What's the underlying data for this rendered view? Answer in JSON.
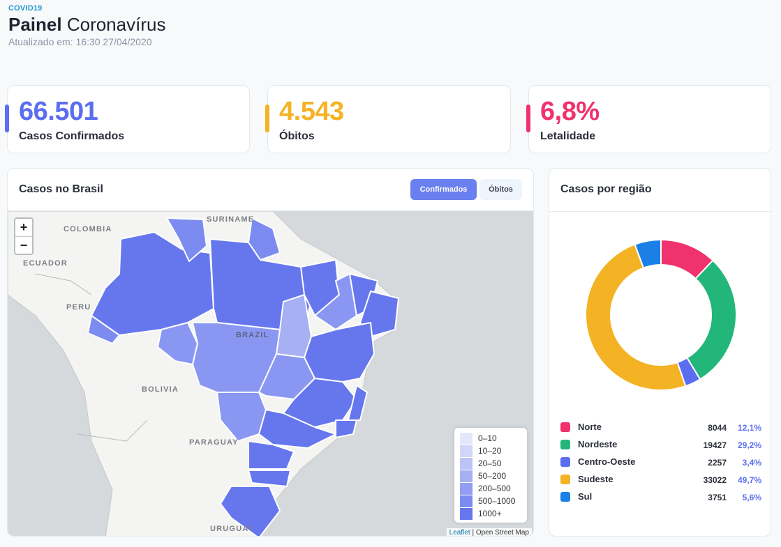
{
  "header": {
    "tag": "COVID19",
    "title_bold": "Painel",
    "title_light": "Coronavírus",
    "updated_label": "Atualizado em:",
    "updated_value": "16:30 27/04/2020"
  },
  "stats": [
    {
      "value": "66.501",
      "label": "Casos Confirmados",
      "color": "#5b6ef0"
    },
    {
      "value": "4.543",
      "label": "Óbitos",
      "color": "#f4b324"
    },
    {
      "value": "6,8%",
      "label": "Letalidade",
      "color": "#f0326e"
    }
  ],
  "map_panel": {
    "title": "Casos no Brasil",
    "toggle_active": "Confirmados",
    "toggle_inactive": "Óbitos",
    "zoom_in": "+",
    "zoom_out": "−",
    "countries": [
      "COLOMBIA",
      "SURINAME",
      "ECUADOR",
      "PERU",
      "BRAZIL",
      "BOLIVIA",
      "PARAGUAY",
      "URUGUAY"
    ],
    "legend": [
      {
        "label": "0–10",
        "color": "#e4e7fb"
      },
      {
        "label": "10–20",
        "color": "#d1d6f8"
      },
      {
        "label": "20–50",
        "color": "#bcc3f5"
      },
      {
        "label": "50–200",
        "color": "#a6b0f3"
      },
      {
        "label": "200–500",
        "color": "#919ef3"
      },
      {
        "label": "500–1000",
        "color": "#7c8bf0"
      },
      {
        "label": "1000+",
        "color": "#6677ee"
      }
    ],
    "attribution_link": "Leaflet",
    "attribution_text": "| Open Street Map"
  },
  "region_panel": {
    "title": "Casos por região",
    "regions": [
      {
        "name": "Norte",
        "count": "8044",
        "pct": "12,1%",
        "color": "#f0326e"
      },
      {
        "name": "Nordeste",
        "count": "19427",
        "pct": "29,2%",
        "color": "#22b67a"
      },
      {
        "name": "Centro-Oeste",
        "count": "2257",
        "pct": "3,4%",
        "color": "#5b6ef0"
      },
      {
        "name": "Sudeste",
        "count": "33022",
        "pct": "49,7%",
        "color": "#f4b324"
      },
      {
        "name": "Sul",
        "count": "3751",
        "pct": "5,6%",
        "color": "#1a7fe6"
      }
    ]
  },
  "chart_data": {
    "type": "pie",
    "categories": [
      "Norte",
      "Nordeste",
      "Centro-Oeste",
      "Sudeste",
      "Sul"
    ],
    "values": [
      8044,
      19427,
      2257,
      33022,
      3751
    ],
    "colors": [
      "#f0326e",
      "#22b67a",
      "#5b6ef0",
      "#f4b324",
      "#1a7fe6"
    ],
    "title": "Casos por região"
  }
}
